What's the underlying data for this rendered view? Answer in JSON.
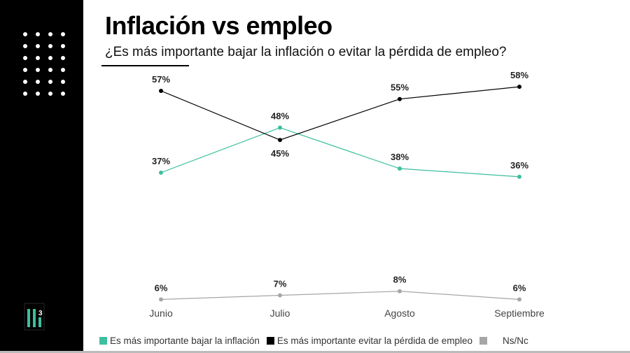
{
  "slide": {
    "title": "Inflación vs empleo",
    "subtitle": "¿Es más importante bajar la inflación o evitar la pérdida de empleo?",
    "logo_text": "3"
  },
  "chart_data": {
    "type": "line",
    "categories": [
      "Junio",
      "Julio",
      "Agosto",
      "Septiembre"
    ],
    "ylim": [
      0,
      60
    ],
    "grid": false,
    "legend_placement": "bottom",
    "series": [
      {
        "name": "Es más importante bajar la inflación",
        "color": "#3dbf9f",
        "values": [
          37,
          48,
          38,
          36
        ],
        "labels": [
          "37%",
          "48%",
          "38%",
          "36%"
        ]
      },
      {
        "name": "Es más importante evitar la pérdida de empleo",
        "color": "#000000",
        "values": [
          57,
          45,
          55,
          58
        ],
        "labels": [
          "57%",
          "45%",
          "55%",
          "58%"
        ]
      },
      {
        "name": "Ns/Nc",
        "color": "#a6a6a6",
        "values": [
          6,
          7,
          8,
          6
        ],
        "labels": [
          "6%",
          "7%",
          "8%",
          "6%"
        ]
      }
    ]
  }
}
